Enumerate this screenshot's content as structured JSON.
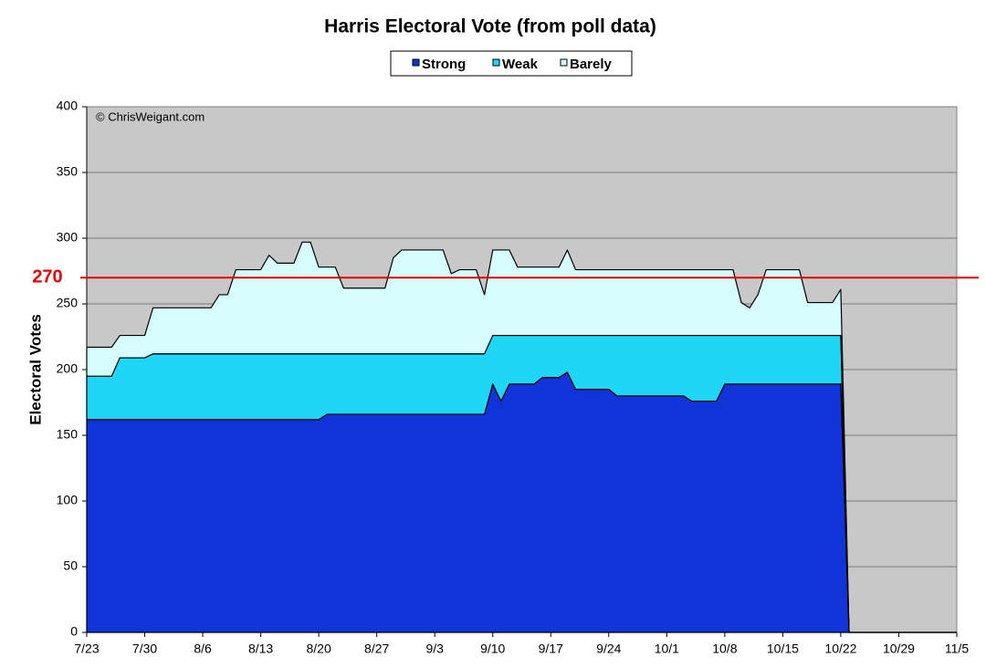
{
  "chart_data": {
    "type": "area",
    "stacked": true,
    "title": "Harris Electoral Vote (from poll data)",
    "ylabel": "Electoral Votes",
    "annotation": "© ChrisWeigant.com",
    "reference_line": {
      "value": 270,
      "color": "#e00000"
    },
    "background": "#c8c8c8",
    "grid": true,
    "x": [
      "7/23",
      "7/24",
      "7/25",
      "7/26",
      "7/27",
      "7/28",
      "7/29",
      "7/30",
      "7/31",
      "8/1",
      "8/2",
      "8/3",
      "8/4",
      "8/5",
      "8/6",
      "8/7",
      "8/8",
      "8/9",
      "8/10",
      "8/11",
      "8/12",
      "8/13",
      "8/14",
      "8/15",
      "8/16",
      "8/17",
      "8/18",
      "8/19",
      "8/20",
      "8/21",
      "8/22",
      "8/23",
      "8/24",
      "8/25",
      "8/26",
      "8/27",
      "8/28",
      "8/29",
      "8/30",
      "8/31",
      "9/1",
      "9/2",
      "9/3",
      "9/4",
      "9/5",
      "9/6",
      "9/7",
      "9/8",
      "9/9",
      "9/10",
      "9/11",
      "9/12",
      "9/13",
      "9/14",
      "9/15",
      "9/16",
      "9/17",
      "9/18",
      "9/19",
      "9/20",
      "9/21",
      "9/22",
      "9/23",
      "9/24",
      "9/25",
      "9/26",
      "9/27",
      "9/28",
      "9/29",
      "9/30",
      "10/1",
      "10/2",
      "10/3",
      "10/4",
      "10/5",
      "10/6",
      "10/7",
      "10/8",
      "10/9",
      "10/10",
      "10/11",
      "10/12",
      "10/13",
      "10/14",
      "10/15",
      "10/16",
      "10/17",
      "10/18",
      "10/19",
      "10/20",
      "10/21",
      "10/22",
      "10/23"
    ],
    "series": [
      {
        "name": "Strong",
        "color": "#1034d8",
        "values": [
          162,
          162,
          162,
          162,
          162,
          162,
          162,
          162,
          162,
          162,
          162,
          162,
          162,
          162,
          162,
          162,
          162,
          162,
          162,
          162,
          162,
          162,
          162,
          162,
          162,
          162,
          162,
          162,
          162,
          166,
          166,
          166,
          166,
          166,
          166,
          166,
          166,
          166,
          166,
          166,
          166,
          166,
          166,
          166,
          166,
          166,
          166,
          166,
          166,
          189,
          176,
          189,
          189,
          189,
          189,
          194,
          194,
          194,
          198,
          185,
          185,
          185,
          185,
          185,
          180,
          180,
          180,
          180,
          180,
          180,
          180,
          180,
          180,
          176,
          176,
          176,
          176,
          189,
          189,
          189,
          189,
          189,
          189,
          189,
          189,
          189,
          189,
          189,
          189,
          189,
          189,
          189,
          0
        ]
      },
      {
        "name": "Weak",
        "color": "#1ed7f7",
        "values": [
          33,
          33,
          33,
          33,
          47,
          47,
          47,
          47,
          50,
          50,
          50,
          50,
          50,
          50,
          50,
          50,
          50,
          50,
          50,
          50,
          50,
          50,
          50,
          50,
          50,
          50,
          50,
          50,
          50,
          46,
          46,
          46,
          46,
          46,
          46,
          46,
          46,
          46,
          46,
          46,
          46,
          46,
          46,
          46,
          46,
          46,
          46,
          46,
          46,
          37,
          50,
          37,
          37,
          37,
          37,
          32,
          32,
          32,
          28,
          41,
          41,
          41,
          41,
          41,
          46,
          46,
          46,
          46,
          46,
          46,
          46,
          46,
          46,
          50,
          50,
          50,
          50,
          37,
          37,
          37,
          37,
          37,
          37,
          37,
          37,
          37,
          37,
          37,
          37,
          37,
          37,
          37,
          0
        ]
      },
      {
        "name": "Barely",
        "color": "#d6fefe",
        "values": [
          22,
          22,
          22,
          22,
          17,
          17,
          17,
          17,
          35,
          35,
          35,
          35,
          35,
          35,
          35,
          35,
          45,
          45,
          64,
          64,
          64,
          64,
          75,
          69,
          69,
          69,
          85,
          85,
          66,
          66,
          66,
          50,
          50,
          50,
          50,
          50,
          50,
          73,
          79,
          79,
          79,
          79,
          79,
          79,
          61,
          64,
          64,
          64,
          45,
          65,
          65,
          65,
          52,
          52,
          52,
          52,
          52,
          52,
          65,
          50,
          50,
          50,
          50,
          50,
          50,
          50,
          50,
          50,
          50,
          50,
          50,
          50,
          50,
          50,
          50,
          50,
          50,
          50,
          50,
          25,
          21,
          31,
          50,
          50,
          50,
          50,
          50,
          25,
          25,
          25,
          25,
          35,
          0
        ]
      }
    ],
    "xlim": [
      "7/23",
      "11/5"
    ],
    "xticks": [
      "7/23",
      "7/30",
      "8/6",
      "8/13",
      "8/20",
      "8/27",
      "9/3",
      "9/10",
      "9/17",
      "9/24",
      "10/1",
      "10/8",
      "10/15",
      "10/22",
      "10/29",
      "11/5"
    ],
    "ylim": [
      0,
      400
    ],
    "yticks": [
      0,
      50,
      100,
      150,
      200,
      250,
      300,
      350,
      400
    ]
  }
}
